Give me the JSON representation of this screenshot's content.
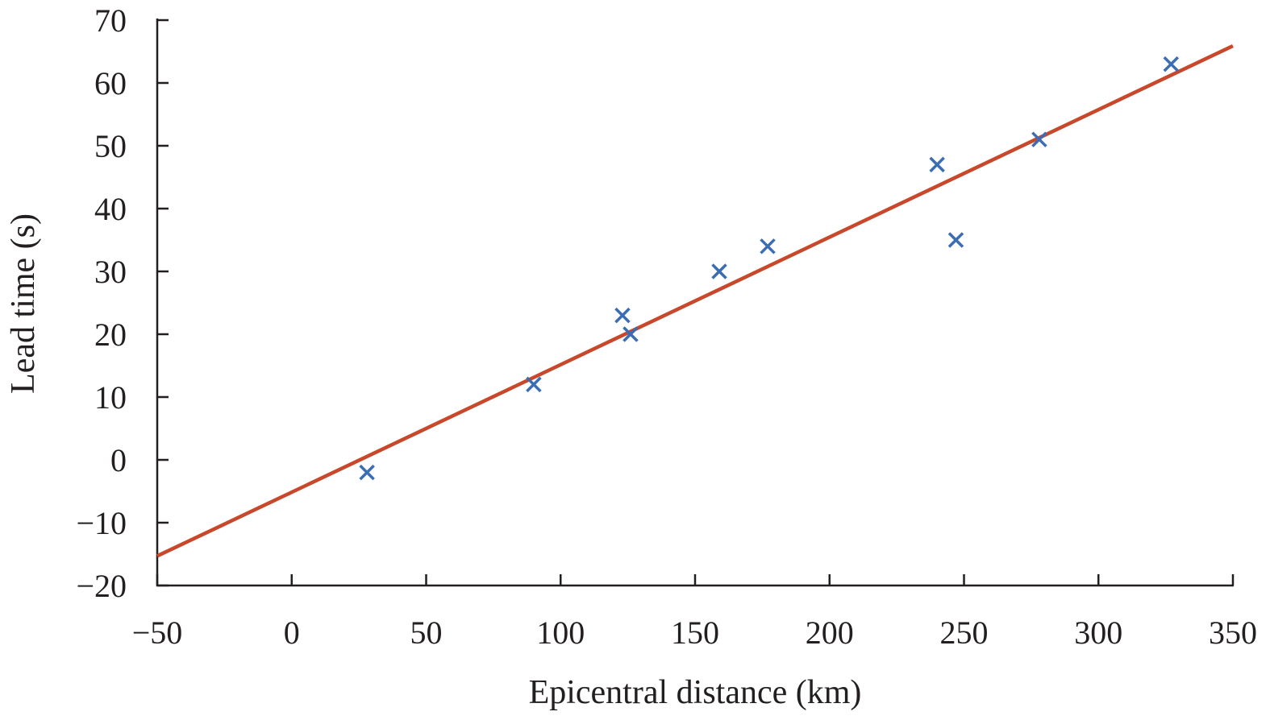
{
  "chart_data": {
    "type": "scatter",
    "title": "",
    "xlabel": "Epicentral distance (km)",
    "ylabel": "Lead time (s)",
    "xlim": [
      -50,
      350
    ],
    "ylim": [
      -20,
      70
    ],
    "xticks": [
      -50,
      0,
      50,
      100,
      150,
      200,
      250,
      300,
      350
    ],
    "yticks": [
      -20,
      -10,
      0,
      10,
      20,
      30,
      40,
      50,
      60,
      70
    ],
    "xtick_labels": [
      "−50",
      "0",
      "50",
      "100",
      "150",
      "200",
      "250",
      "300",
      "350"
    ],
    "ytick_labels": [
      "−20",
      "−10",
      "0",
      "10",
      "20",
      "30",
      "40",
      "50",
      "60",
      "70"
    ],
    "grid": false,
    "series": [
      {
        "marker": "x",
        "color": "#3a6db3",
        "points": [
          {
            "x": 28,
            "y": -2
          },
          {
            "x": 90,
            "y": 12
          },
          {
            "x": 123,
            "y": 23
          },
          {
            "x": 126,
            "y": 20
          },
          {
            "x": 159,
            "y": 30
          },
          {
            "x": 177,
            "y": 34
          },
          {
            "x": 240,
            "y": 47
          },
          {
            "x": 247,
            "y": 35
          },
          {
            "x": 278,
            "y": 51
          },
          {
            "x": 327,
            "y": 63
          }
        ]
      }
    ],
    "fit_line": {
      "color": "#c8482b",
      "x": [
        -50,
        350
      ],
      "y": [
        -15.3,
        65.9
      ]
    }
  }
}
